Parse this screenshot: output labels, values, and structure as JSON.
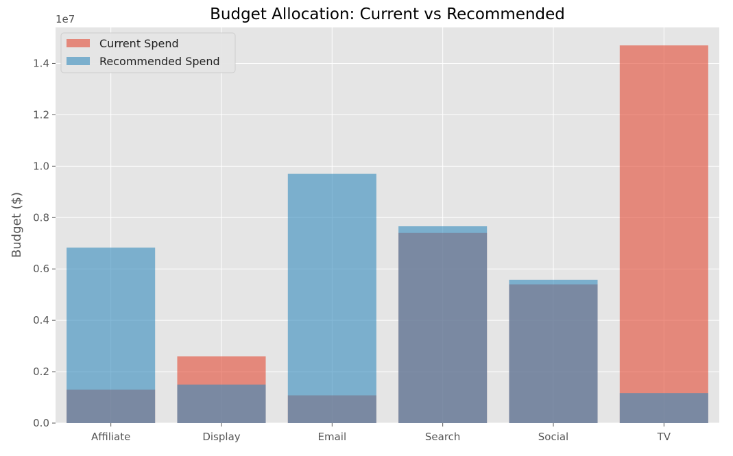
{
  "chart_data": {
    "type": "bar",
    "title": "Budget Allocation: Current vs Recommended",
    "xlabel": "",
    "ylabel": "Budget ($)",
    "y_offset_label": "1e7",
    "categories": [
      "Affiliate",
      "Display",
      "Email",
      "Search",
      "Social",
      "TV"
    ],
    "series": [
      {
        "name": "Current Spend",
        "values": [
          1300000,
          2600000,
          1080000,
          7400000,
          5400000,
          14700000
        ],
        "color": "#e24a33",
        "alpha": 0.6
      },
      {
        "name": "Recommended Spend",
        "values": [
          6830000,
          1500000,
          9700000,
          7660000,
          5580000,
          1170000
        ],
        "color": "#348abd",
        "alpha": 0.6
      }
    ],
    "ylim": [
      0,
      15400000
    ],
    "yticks": [
      0,
      2000000,
      4000000,
      6000000,
      8000000,
      10000000,
      12000000,
      14000000
    ],
    "ytick_labels": [
      "0.0",
      "0.2",
      "0.4",
      "0.6",
      "0.8",
      "1.0",
      "1.2",
      "1.4"
    ],
    "grid": true,
    "legend_position": "top-left",
    "background": "#e5e5e5",
    "grid_color": "#ffffff"
  }
}
